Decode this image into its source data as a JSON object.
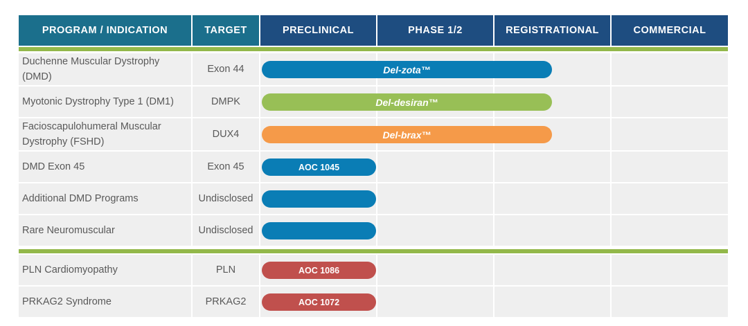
{
  "colors": {
    "header_teal": "#1b6f8c",
    "header_navy": "#1e4d80",
    "rule_green": "#93b84a",
    "cell_bg": "#efefef",
    "text": "#595959",
    "bar_blue": "#0a7db5",
    "bar_green": "#98bf56",
    "bar_orange": "#f59a49",
    "bar_red": "#c0504d"
  },
  "chart_data": {
    "type": "table",
    "columns": [
      "PROGRAM / INDICATION",
      "TARGET",
      "PRECLINICAL",
      "PHASE 1/2",
      "REGISTRATIONAL",
      "COMMERCIAL"
    ],
    "stages": [
      "PRECLINICAL",
      "PHASE 1/2",
      "REGISTRATIONAL",
      "COMMERCIAL"
    ],
    "groups": [
      {
        "rows": [
          {
            "program": "Duchenne Muscular Dystrophy (DMD)",
            "target": "Exon 44",
            "label": "Del-zota™",
            "stage_progress": 2.5,
            "color": "#0a7db5"
          },
          {
            "program": "Myotonic Dystrophy Type 1 (DM1)",
            "target": "DMPK",
            "label": "Del-desiran™",
            "stage_progress": 2.5,
            "color": "#98bf56"
          },
          {
            "program": "Facioscapulohumeral Muscular Dystrophy (FSHD)",
            "target": "DUX4",
            "label": "Del-brax™",
            "stage_progress": 2.5,
            "color": "#f59a49"
          },
          {
            "program": "DMD Exon 45",
            "target": "Exon 45",
            "label": "AOC 1045",
            "stage_progress": 1,
            "color": "#0a7db5"
          },
          {
            "program": "Additional DMD Programs",
            "target": "Undisclosed",
            "label": "",
            "stage_progress": 1,
            "color": "#0a7db5"
          },
          {
            "program": "Rare Neuromuscular",
            "target": "Undisclosed",
            "label": "",
            "stage_progress": 1,
            "color": "#0a7db5"
          }
        ]
      },
      {
        "rows": [
          {
            "program": "PLN Cardiomyopathy",
            "target": "PLN",
            "label": "AOC 1086",
            "stage_progress": 1,
            "color": "#c0504d"
          },
          {
            "program": "PRKAG2 Syndrome",
            "target": "PRKAG2",
            "label": "AOC 1072",
            "stage_progress": 1,
            "color": "#c0504d"
          }
        ]
      }
    ]
  }
}
